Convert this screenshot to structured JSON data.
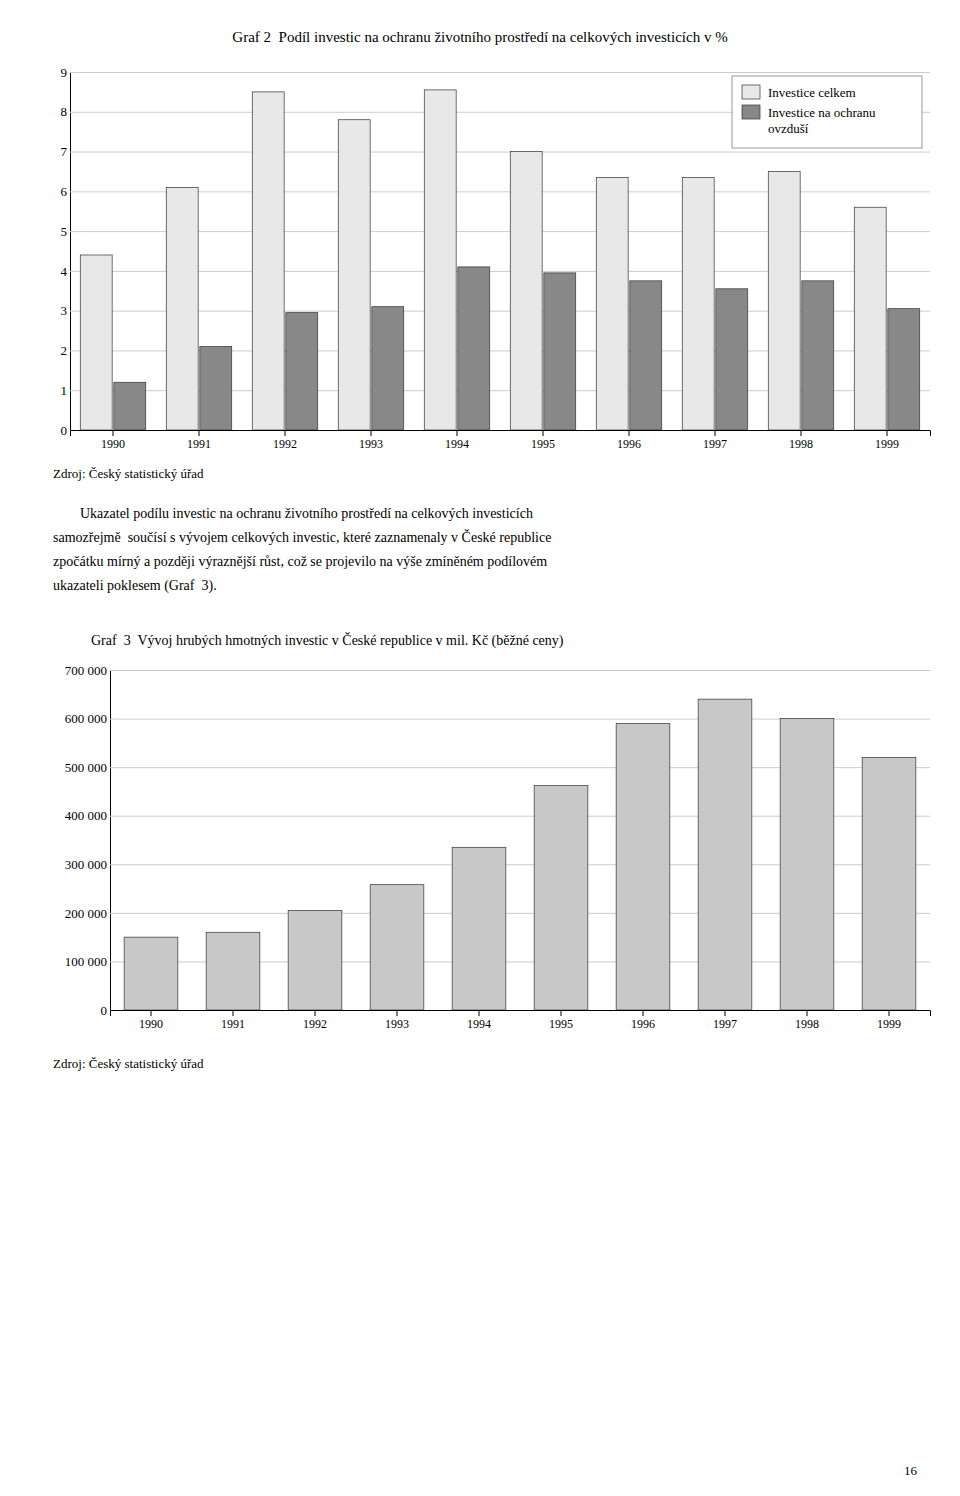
{
  "chart_data": [
    {
      "type": "bar",
      "title": "Graf 2  Podíl investic na ochranu životního prostředí na celkových investicích v %",
      "categories": [
        "1990",
        "1991",
        "1992",
        "1993",
        "1994",
        "1995",
        "1996",
        "1997",
        "1998",
        "1999"
      ],
      "series": [
        {
          "name": "Investice celkem",
          "color": "#e8e8e8",
          "values": [
            4.4,
            6.1,
            8.5,
            7.8,
            8.55,
            7.0,
            6.35,
            6.35,
            6.5,
            5.6
          ]
        },
        {
          "name": "Investice na ochranu\novzduší",
          "color": "#888888",
          "values": [
            1.2,
            2.1,
            2.95,
            3.1,
            4.1,
            3.95,
            3.75,
            3.55,
            3.75,
            3.05
          ]
        }
      ],
      "ylim": [
        0,
        9
      ],
      "yticks": [
        0,
        1,
        2,
        3,
        4,
        5,
        6,
        7,
        8,
        9
      ],
      "grid": true,
      "legend": "upper right",
      "annotations": [
        "Zdroj: Český statistický úřad",
        "Ukazatel podílu investic na ochranu životního prostředí na celkových investicích",
        "samozřejmě  součísí s vývojem celkových investic, které zaznamenaly v České republice",
        "zpočátku mírný a později výraznější růst, což se projevilo na výše zmíněném podílovém",
        "ukazateli poklesem (Graf  3)."
      ]
    },
    {
      "type": "bar",
      "title": "Graf  3  Vývoj hrubých hmotných investic v České republice v mil. Kč (běžné ceny)",
      "categories": [
        "1990",
        "1991",
        "1992",
        "1993",
        "1994",
        "1995",
        "1996",
        "1997",
        "1998",
        "1999"
      ],
      "values": [
        150000,
        160000,
        205000,
        258000,
        335000,
        462000,
        590000,
        640000,
        600000,
        520000
      ],
      "color": "#c8c8c8",
      "ylim": [
        0,
        700000
      ],
      "yticks": [
        0,
        {
          "value": 100000,
          "label": "100 000"
        },
        {
          "value": 200000,
          "label": "200 000"
        },
        {
          "value": 300000,
          "label": "300 000"
        },
        {
          "value": 400000,
          "label": "400 000"
        },
        {
          "value": 500000,
          "label": "500 000"
        },
        {
          "value": 600000,
          "label": "600 000"
        },
        {
          "value": 700000,
          "label": "700 000"
        }
      ],
      "grid": true,
      "annotations": [
        "Zdroj: Český statistický úřad",
        "16"
      ]
    }
  ]
}
